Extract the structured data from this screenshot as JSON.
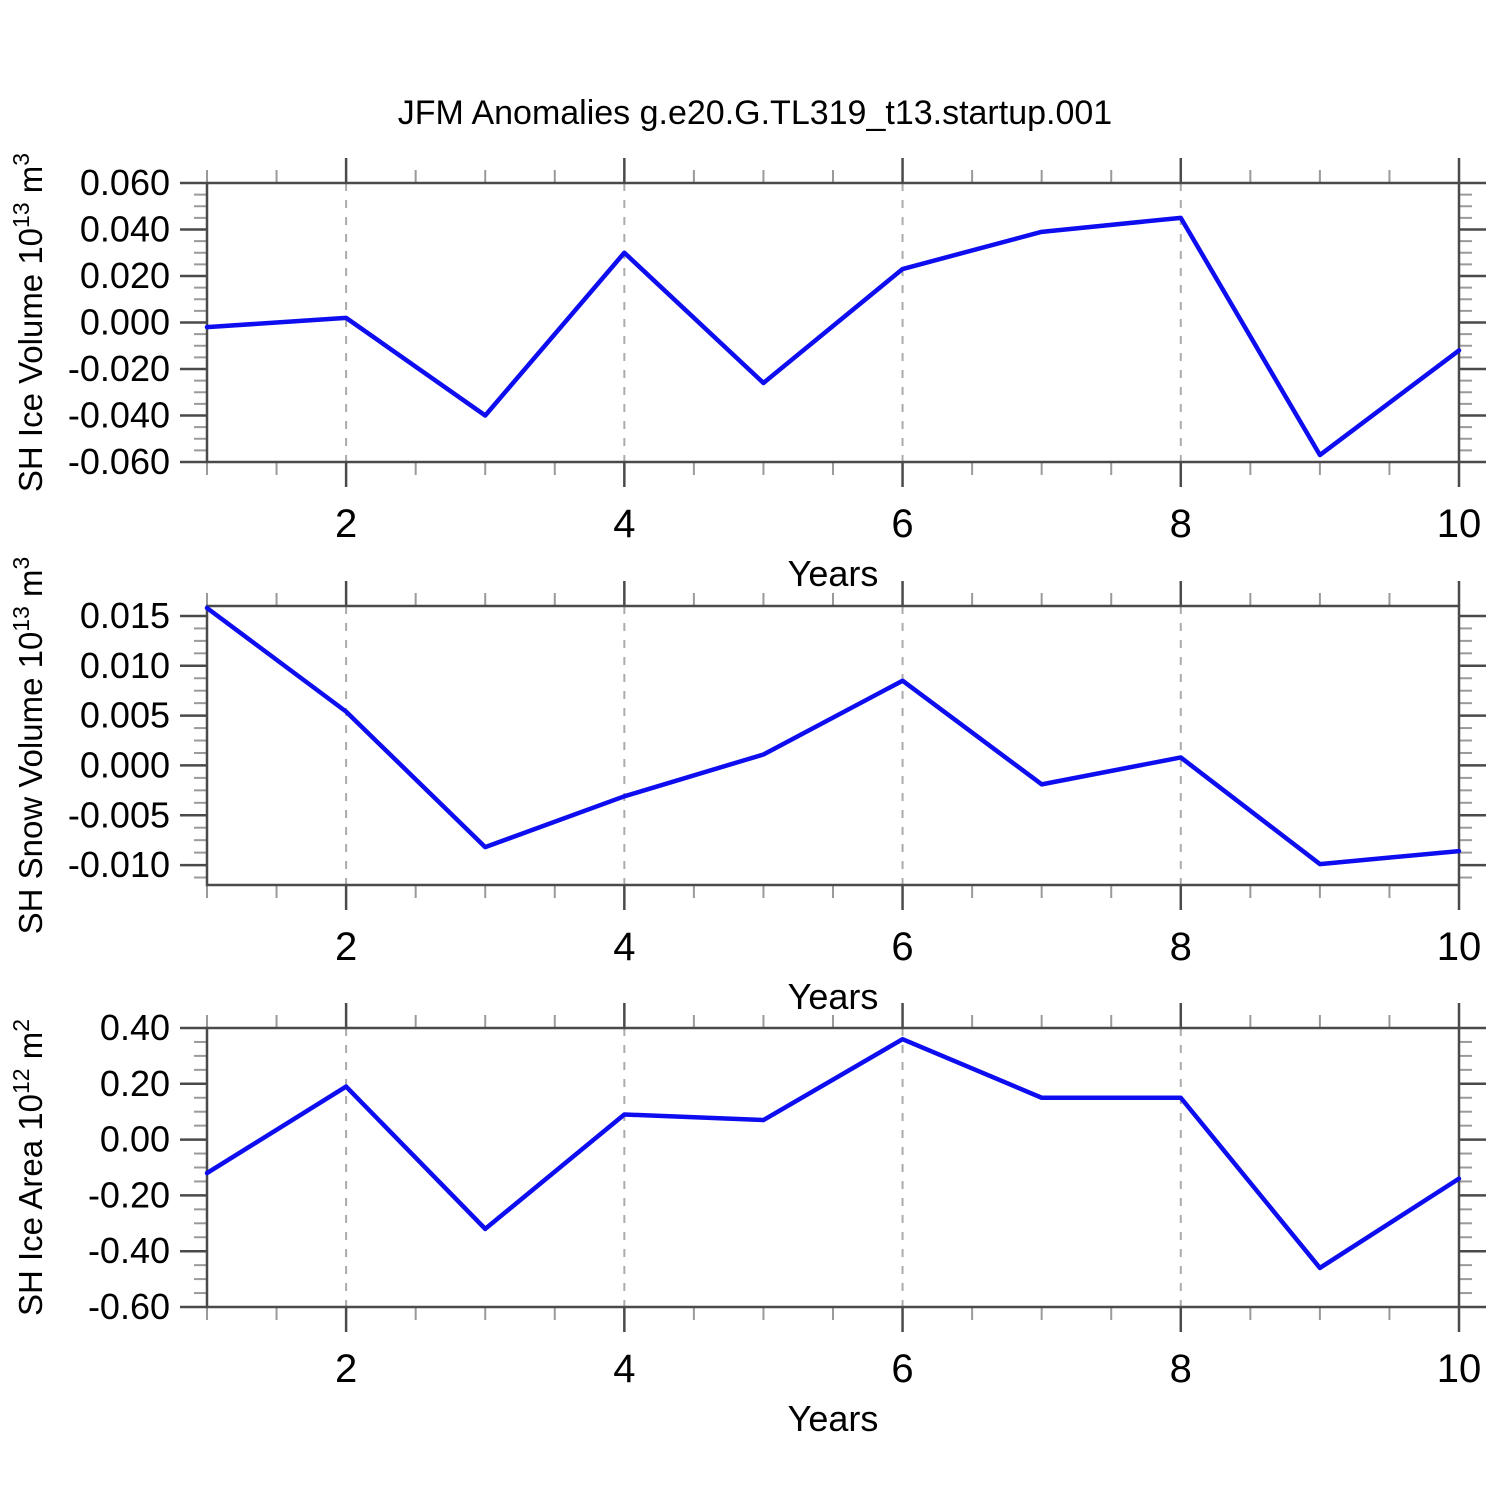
{
  "title": "JFM Anomalies g.e20.G.TL319_t13.startup.001",
  "colors": {
    "background": "#ffffff",
    "line": "#0d0df0",
    "frame": "#4a4a4a",
    "major_tick": "#4a4a4a",
    "minor_tick": "#9a9a9a",
    "gridline": "#ababab",
    "text": "#000000"
  },
  "chart_data": [
    {
      "type": "line",
      "panel": 1,
      "ylabel": "SH Ice Volume 10^13 m^3",
      "ylabel_parts": [
        {
          "t": "SH Ice Volume 10",
          "sup": false
        },
        {
          "t": "13",
          "sup": true
        },
        {
          "t": " m",
          "sup": false
        },
        {
          "t": "3",
          "sup": true
        }
      ],
      "xlabel": "Years",
      "x": [
        1,
        2,
        3,
        4,
        5,
        6,
        7,
        8,
        9,
        10
      ],
      "values": [
        -0.002,
        0.002,
        -0.04,
        0.03,
        -0.026,
        0.023,
        0.039,
        0.045,
        -0.057,
        -0.012
      ],
      "xlim": [
        1,
        10
      ],
      "ylim": [
        -0.06,
        0.06
      ],
      "y_tick_values": [
        0.06,
        0.04,
        0.02,
        0.0,
        -0.02,
        -0.04,
        -0.06
      ],
      "y_tick_labels": [
        "0.060",
        "0.040",
        "0.020",
        "0.000",
        "-0.020",
        "-0.040",
        "-0.060"
      ],
      "y_minor_step": 0.005,
      "x_major_ticks": [
        2,
        4,
        6,
        8,
        10
      ],
      "x_tick_labels": [
        "2",
        "4",
        "6",
        "8",
        "10"
      ],
      "x_minor_step": 0.5,
      "grid_x_dashed": [
        2,
        4,
        6,
        8
      ],
      "legend": "none"
    },
    {
      "type": "line",
      "panel": 2,
      "ylabel": "SH Snow Volume 10^13 m^3",
      "ylabel_parts": [
        {
          "t": "SH Snow Volume 10",
          "sup": false
        },
        {
          "t": "13",
          "sup": true
        },
        {
          "t": " m",
          "sup": false
        },
        {
          "t": "3",
          "sup": true
        }
      ],
      "xlabel": "Years",
      "x": [
        1,
        2,
        3,
        4,
        5,
        6,
        7,
        8,
        9,
        10
      ],
      "values": [
        0.0158,
        0.0054,
        -0.0082,
        -0.0031,
        0.0011,
        0.0085,
        -0.0019,
        0.0008,
        -0.0099,
        -0.0086
      ],
      "xlim": [
        1,
        10
      ],
      "ylim": [
        -0.012,
        0.016
      ],
      "y_tick_values": [
        0.015,
        0.01,
        0.005,
        0.0,
        -0.005,
        -0.01
      ],
      "y_tick_labels": [
        "0.015",
        "0.010",
        "0.005",
        "0.000",
        "-0.005",
        "-0.010"
      ],
      "y_minor_step": 0.00125,
      "x_major_ticks": [
        2,
        4,
        6,
        8,
        10
      ],
      "x_tick_labels": [
        "2",
        "4",
        "6",
        "8",
        "10"
      ],
      "x_minor_step": 0.5,
      "grid_x_dashed": [
        2,
        4,
        6,
        8
      ],
      "legend": "none"
    },
    {
      "type": "line",
      "panel": 3,
      "ylabel": "SH Ice Area 10^12 m^2",
      "ylabel_parts": [
        {
          "t": "SH Ice Area 10",
          "sup": false
        },
        {
          "t": "12",
          "sup": true
        },
        {
          "t": " m",
          "sup": false
        },
        {
          "t": "2",
          "sup": true
        }
      ],
      "xlabel": "Years",
      "x": [
        1,
        2,
        3,
        4,
        5,
        6,
        7,
        8,
        9,
        10
      ],
      "values": [
        -0.12,
        0.19,
        -0.32,
        0.09,
        0.07,
        0.36,
        0.15,
        0.15,
        -0.46,
        -0.14
      ],
      "xlim": [
        1,
        10
      ],
      "ylim": [
        -0.6,
        0.4
      ],
      "y_tick_values": [
        0.4,
        0.2,
        0.0,
        -0.2,
        -0.4,
        -0.6
      ],
      "y_tick_labels": [
        "0.40",
        "0.20",
        "0.00",
        "-0.20",
        "-0.40",
        "-0.60"
      ],
      "y_minor_step": 0.05,
      "x_major_ticks": [
        2,
        4,
        6,
        8,
        10
      ],
      "x_tick_labels": [
        "2",
        "4",
        "6",
        "8",
        "10"
      ],
      "x_minor_step": 0.5,
      "grid_x_dashed": [
        2,
        4,
        6,
        8
      ],
      "legend": "none"
    }
  ]
}
